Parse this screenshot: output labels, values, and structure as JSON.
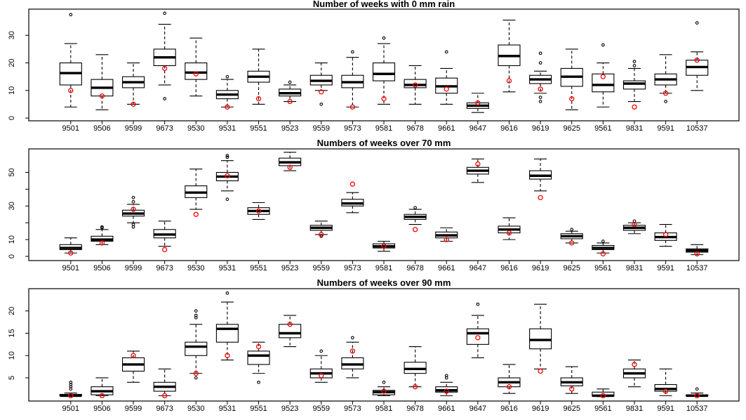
{
  "figure": {
    "background": "#ffffff",
    "foreground": "#000000",
    "observed_marker_color": "#ff0000",
    "outlier_marker_color": "#000000",
    "panel_count": 3
  },
  "chart_data": [
    {
      "type": "boxplot",
      "title": "Number of weeks with 0 mm rain",
      "xlabel": "",
      "ylabel": "",
      "ylim": [
        -1.0,
        39.5
      ],
      "yticks": [
        0,
        10,
        20,
        30
      ],
      "ytick_labels": [
        "0",
        "10",
        "20",
        "30"
      ],
      "grid": false,
      "legend": "none",
      "categories": [
        "9501",
        "9506",
        "9599",
        "9673",
        "9530",
        "9531",
        "9551",
        "9523",
        "9559",
        "9573",
        "9581",
        "9678",
        "9661",
        "9647",
        "9616",
        "9619",
        "9625",
        "9561",
        "9831",
        "9591",
        "10537"
      ],
      "boxes": [
        {
          "category": "9501",
          "whisker_low": 4,
          "q1": 12,
          "median": 16.3,
          "q3": 20,
          "whisker_high": 27,
          "outliers": [
            37.5
          ],
          "observed": 10
        },
        {
          "category": "9506",
          "whisker_low": 3,
          "q1": 8,
          "median": 11,
          "q3": 14,
          "whisker_high": 23,
          "outliers": [],
          "observed": 8
        },
        {
          "category": "9599",
          "whisker_low": 5,
          "q1": 11,
          "median": 13,
          "q3": 15,
          "whisker_high": 20,
          "outliers": [],
          "observed": 5
        },
        {
          "category": "9673",
          "whisker_low": 12,
          "q1": 19,
          "median": 22,
          "q3": 25,
          "whisker_high": 34,
          "outliers": [
            38,
            7
          ],
          "observed": 18
        },
        {
          "category": "9530",
          "whisker_low": 8,
          "q1": 14,
          "median": 16.5,
          "q3": 20,
          "whisker_high": 29,
          "outliers": [],
          "observed": 16
        },
        {
          "category": "9531",
          "whisker_low": 4,
          "q1": 7,
          "median": 8.5,
          "q3": 10,
          "whisker_high": 14,
          "outliers": [
            15
          ],
          "observed": 4
        },
        {
          "category": "9551",
          "whisker_low": 5,
          "q1": 13,
          "median": 15,
          "q3": 17,
          "whisker_high": 25,
          "outliers": [],
          "observed": 7
        },
        {
          "category": "9523",
          "whisker_low": 6,
          "q1": 8,
          "median": 9,
          "q3": 10.5,
          "whisker_high": 12,
          "outliers": [
            13
          ],
          "observed": 6
        },
        {
          "category": "9559",
          "whisker_low": 10,
          "q1": 12,
          "median": 13.5,
          "q3": 15.5,
          "whisker_high": 20,
          "outliers": [
            5
          ],
          "observed": 9.5
        },
        {
          "category": "9573",
          "whisker_low": 4,
          "q1": 11,
          "median": 13,
          "q3": 15.5,
          "whisker_high": 22,
          "outliers": [
            24
          ],
          "observed": 4
        },
        {
          "category": "9581",
          "whisker_low": 5,
          "q1": 13.5,
          "median": 16,
          "q3": 20,
          "whisker_high": 27,
          "outliers": [
            29
          ],
          "observed": 7
        },
        {
          "category": "9678",
          "whisker_low": 5,
          "q1": 11,
          "median": 12,
          "q3": 14,
          "whisker_high": 19,
          "outliers": [],
          "observed": 12
        },
        {
          "category": "9661",
          "whisker_low": 5,
          "q1": 9,
          "median": 11.5,
          "q3": 14.5,
          "whisker_high": 18,
          "outliers": [
            24
          ],
          "observed": 10.5
        },
        {
          "category": "9647",
          "whisker_low": 2,
          "q1": 3.5,
          "median": 4.5,
          "q3": 5.5,
          "whisker_high": 9,
          "outliers": [],
          "observed": 5.5
        },
        {
          "category": "9616",
          "whisker_low": 9.5,
          "q1": 19,
          "median": 22.5,
          "q3": 26.5,
          "whisker_high": 35.5,
          "outliers": [],
          "observed": 13.5
        },
        {
          "category": "9619",
          "whisker_low": 9,
          "q1": 12.5,
          "median": 14,
          "q3": 15.5,
          "whisker_high": 17,
          "outliers": [
            23.5,
            20,
            7.5,
            6
          ],
          "observed": 10.5
        },
        {
          "category": "9625",
          "whisker_low": 3,
          "q1": 11.5,
          "median": 15,
          "q3": 18,
          "whisker_high": 25,
          "outliers": [],
          "observed": 7
        },
        {
          "category": "9561",
          "whisker_low": 4,
          "q1": 9.5,
          "median": 12,
          "q3": 16,
          "whisker_high": 20,
          "outliers": [
            26.5
          ],
          "observed": 15
        },
        {
          "category": "9831",
          "whisker_low": 6,
          "q1": 10.5,
          "median": 12.5,
          "q3": 13.5,
          "whisker_high": 18,
          "outliers": [
            20.5,
            19
          ],
          "observed": 4
        },
        {
          "category": "9591",
          "whisker_low": 9,
          "q1": 12,
          "median": 14,
          "q3": 16,
          "whisker_high": 23,
          "outliers": [
            6
          ],
          "observed": 9
        },
        {
          "category": "10537",
          "whisker_low": 10,
          "q1": 15.5,
          "median": 18.5,
          "q3": 21,
          "whisker_high": 24,
          "outliers": [
            34.5
          ],
          "observed": 21
        }
      ]
    },
    {
      "type": "boxplot",
      "title": "Numbers of weeks over 70 mm",
      "xlabel": "",
      "ylabel": "",
      "ylim": [
        -2.5,
        64
      ],
      "yticks": [
        0,
        10,
        20,
        30,
        40,
        50
      ],
      "ytick_labels": [
        "0",
        "10",
        "",
        "30",
        "",
        "50"
      ],
      "grid": false,
      "legend": "none",
      "categories": [
        "9501",
        "9506",
        "9599",
        "9673",
        "9530",
        "9531",
        "9551",
        "9523",
        "9559",
        "9573",
        "9581",
        "9678",
        "9661",
        "9647",
        "9616",
        "9619",
        "9625",
        "9561",
        "9831",
        "9591",
        "10537"
      ],
      "boxes": [
        {
          "category": "9501",
          "whisker_low": 2,
          "q1": 4,
          "median": 5,
          "q3": 7,
          "whisker_high": 11,
          "outliers": [],
          "observed": 2
        },
        {
          "category": "9506",
          "whisker_low": 7,
          "q1": 9,
          "median": 10,
          "q3": 12,
          "whisker_high": 16,
          "outliers": [
            17.5,
            17
          ],
          "observed": 8
        },
        {
          "category": "9599",
          "whisker_low": 20,
          "q1": 24,
          "median": 25.5,
          "q3": 27.5,
          "whisker_high": 31,
          "outliers": [
            35,
            32.5,
            19,
            17.5
          ],
          "observed": 28
        },
        {
          "category": "9673",
          "whisker_low": 6,
          "q1": 11,
          "median": 13,
          "q3": 16,
          "whisker_high": 21,
          "outliers": [],
          "observed": 4
        },
        {
          "category": "9530",
          "whisker_low": 28,
          "q1": 35,
          "median": 38,
          "q3": 42,
          "whisker_high": 52,
          "outliers": [],
          "observed": 25
        },
        {
          "category": "9531",
          "whisker_low": 39,
          "q1": 45,
          "median": 47.5,
          "q3": 50,
          "whisker_high": 57,
          "outliers": [
            60,
            59,
            34
          ],
          "observed": 48
        },
        {
          "category": "9551",
          "whisker_low": 22,
          "q1": 25,
          "median": 27,
          "q3": 29,
          "whisker_high": 32,
          "outliers": [],
          "observed": 27
        },
        {
          "category": "9523",
          "whisker_low": 51,
          "q1": 54,
          "median": 56,
          "q3": 58.5,
          "whisker_high": 62,
          "outliers": [],
          "observed": 53
        },
        {
          "category": "9559",
          "whisker_low": 13,
          "q1": 15.5,
          "median": 17,
          "q3": 18.5,
          "whisker_high": 21,
          "outliers": [
            12
          ],
          "observed": 13
        },
        {
          "category": "9573",
          "whisker_low": 26,
          "q1": 30,
          "median": 31.5,
          "q3": 34,
          "whisker_high": 38,
          "outliers": [],
          "observed": 43
        },
        {
          "category": "9581",
          "whisker_low": 3,
          "q1": 5,
          "median": 6,
          "q3": 7.5,
          "whisker_high": 9,
          "outliers": [],
          "observed": 6
        },
        {
          "category": "9678",
          "whisker_low": 19,
          "q1": 22,
          "median": 23.5,
          "q3": 25,
          "whisker_high": 28,
          "outliers": [
            29
          ],
          "observed": 16
        },
        {
          "category": "9661",
          "whisker_low": 9,
          "q1": 11,
          "median": 12.5,
          "q3": 14.5,
          "whisker_high": 17,
          "outliers": [],
          "observed": 10
        },
        {
          "category": "9647",
          "whisker_low": 44,
          "q1": 49,
          "median": 51,
          "q3": 53,
          "whisker_high": 58,
          "outliers": [],
          "observed": 55
        },
        {
          "category": "9616",
          "whisker_low": 10,
          "q1": 14,
          "median": 16,
          "q3": 18,
          "whisker_high": 23,
          "outliers": [],
          "observed": 14
        },
        {
          "category": "9619",
          "whisker_low": 39,
          "q1": 46,
          "median": 48,
          "q3": 51,
          "whisker_high": 58,
          "outliers": [],
          "observed": 35
        },
        {
          "category": "9625",
          "whisker_low": 8,
          "q1": 10.5,
          "median": 12,
          "q3": 13.5,
          "whisker_high": 15,
          "outliers": [
            16
          ],
          "observed": 8
        },
        {
          "category": "9561",
          "whisker_low": 2,
          "q1": 4,
          "median": 5,
          "q3": 6.5,
          "whisker_high": 8,
          "outliers": [
            9
          ],
          "observed": 1.5
        },
        {
          "category": "9831",
          "whisker_low": 13.5,
          "q1": 15.5,
          "median": 17,
          "q3": 18.5,
          "whisker_high": 20,
          "outliers": [
            21
          ],
          "observed": 19
        },
        {
          "category": "9591",
          "whisker_low": 6,
          "q1": 9.5,
          "median": 11.5,
          "q3": 14,
          "whisker_high": 19,
          "outliers": [],
          "observed": 13
        },
        {
          "category": "10537",
          "whisker_low": 1,
          "q1": 2.5,
          "median": 3.5,
          "q3": 4.5,
          "whisker_high": 7,
          "outliers": [],
          "observed": 1.5
        }
      ]
    },
    {
      "type": "boxplot",
      "title": "Numbers of weeks over 90 mm",
      "xlabel": "",
      "ylabel": "",
      "ylim": [
        -0.2,
        25
      ],
      "yticks": [
        5,
        10,
        15,
        20
      ],
      "ytick_labels": [
        "5",
        "10",
        "15",
        "20"
      ],
      "grid": false,
      "legend": "none",
      "categories": [
        "9501",
        "9506",
        "9599",
        "9673",
        "9530",
        "9531",
        "9551",
        "9523",
        "9559",
        "9573",
        "9581",
        "9678",
        "9661",
        "9647",
        "9616",
        "9619",
        "9625",
        "9561",
        "9831",
        "9591",
        "10537"
      ],
      "boxes": [
        {
          "category": "9501",
          "whisker_low": 1,
          "q1": 1,
          "median": 1,
          "q3": 1.3,
          "whisker_high": 1.6,
          "outliers": [
            2.5,
            3,
            3.5,
            4
          ],
          "observed": 1
        },
        {
          "category": "9506",
          "whisker_low": 1,
          "q1": 1.2,
          "median": 2,
          "q3": 3,
          "whisker_high": 5,
          "outliers": [],
          "observed": 1
        },
        {
          "category": "9599",
          "whisker_low": 4,
          "q1": 6.5,
          "median": 8,
          "q3": 9.5,
          "whisker_high": 11,
          "outliers": [],
          "observed": 10
        },
        {
          "category": "9673",
          "whisker_low": 1,
          "q1": 2,
          "median": 3,
          "q3": 4,
          "whisker_high": 7,
          "outliers": [],
          "observed": 1
        },
        {
          "category": "9530",
          "whisker_low": 6,
          "q1": 10,
          "median": 12,
          "q3": 13,
          "whisker_high": 17,
          "outliers": [
            20,
            19,
            18.5,
            5
          ],
          "observed": 6
        },
        {
          "category": "9531",
          "whisker_low": 9,
          "q1": 13,
          "median": 16,
          "q3": 17,
          "whisker_high": 22,
          "outliers": [
            24
          ],
          "observed": 10
        },
        {
          "category": "9551",
          "whisker_low": 6,
          "q1": 8,
          "median": 10,
          "q3": 11,
          "whisker_high": 13,
          "outliers": [
            4
          ],
          "observed": 12
        },
        {
          "category": "9523",
          "whisker_low": 12,
          "q1": 14,
          "median": 15,
          "q3": 17,
          "whisker_high": 19,
          "outliers": [],
          "observed": 17
        },
        {
          "category": "9559",
          "whisker_low": 4,
          "q1": 5,
          "median": 6,
          "q3": 7,
          "whisker_high": 10,
          "outliers": [
            11
          ],
          "observed": 5.5
        },
        {
          "category": "9573",
          "whisker_low": 5,
          "q1": 7,
          "median": 8,
          "q3": 9.5,
          "whisker_high": 13,
          "outliers": [
            14
          ],
          "observed": 11
        },
        {
          "category": "9581",
          "whisker_low": 1,
          "q1": 1.2,
          "median": 1.8,
          "q3": 2.2,
          "whisker_high": 3,
          "outliers": [
            4
          ],
          "observed": 2
        },
        {
          "category": "9678",
          "whisker_low": 3,
          "q1": 6,
          "median": 7,
          "q3": 8.5,
          "whisker_high": 12,
          "outliers": [],
          "observed": 3
        },
        {
          "category": "9661",
          "whisker_low": 1,
          "q1": 1.8,
          "median": 2.2,
          "q3": 3,
          "whisker_high": 4,
          "outliers": [
            5.5,
            5
          ],
          "observed": 2
        },
        {
          "category": "9647",
          "whisker_low": 9.5,
          "q1": 12.5,
          "median": 15,
          "q3": 16,
          "whisker_high": 19,
          "outliers": [
            21.5
          ],
          "observed": 14
        },
        {
          "category": "9616",
          "whisker_low": 1.5,
          "q1": 3,
          "median": 4,
          "q3": 5,
          "whisker_high": 8,
          "outliers": [],
          "observed": 3
        },
        {
          "category": "9619",
          "whisker_low": 7,
          "q1": 11.5,
          "median": 13.5,
          "q3": 16,
          "whisker_high": 21.5,
          "outliers": [],
          "observed": 6.5
        },
        {
          "category": "9625",
          "whisker_low": 1.5,
          "q1": 3.2,
          "median": 4,
          "q3": 5,
          "whisker_high": 7.5,
          "outliers": [],
          "observed": 2.5
        },
        {
          "category": "9561",
          "whisker_low": 0.8,
          "q1": 0.9,
          "median": 1,
          "q3": 1.8,
          "whisker_high": 2.5,
          "outliers": [],
          "observed": 1
        },
        {
          "category": "9831",
          "whisker_low": 3,
          "q1": 5,
          "median": 6,
          "q3": 7,
          "whisker_high": 9,
          "outliers": [],
          "observed": 8
        },
        {
          "category": "9591",
          "whisker_low": 1,
          "q1": 2,
          "median": 2.5,
          "q3": 3.5,
          "whisker_high": 7,
          "outliers": [],
          "observed": 2
        },
        {
          "category": "10537",
          "whisker_low": 0.9,
          "q1": 0.95,
          "median": 1,
          "q3": 1.2,
          "whisker_high": 1.6,
          "outliers": [
            2.5
          ],
          "observed": 1
        }
      ]
    }
  ]
}
